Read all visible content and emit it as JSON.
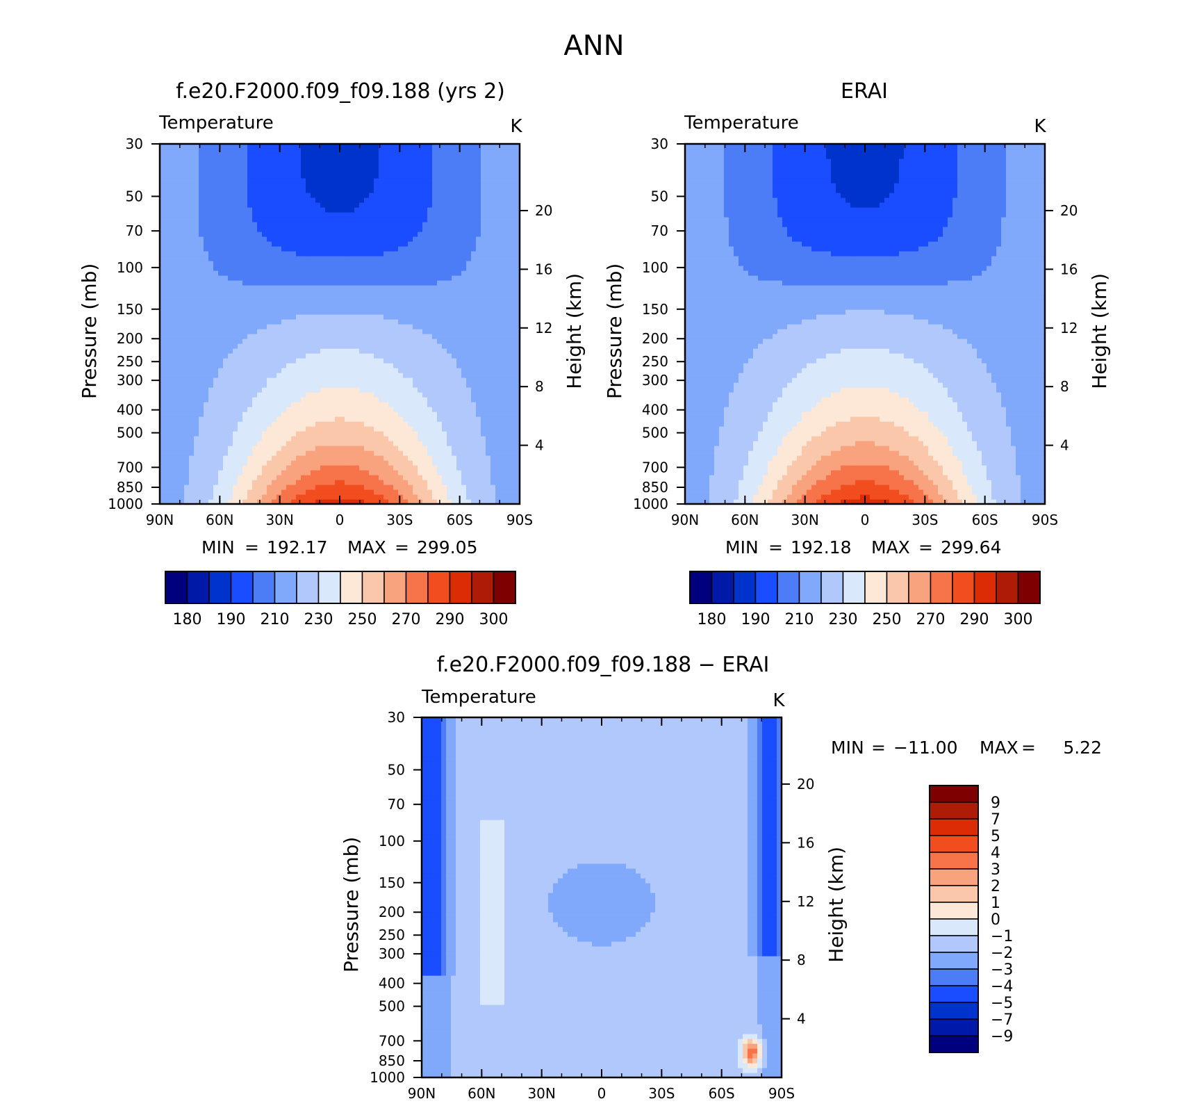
{
  "figure_title": "ANN",
  "colors": {
    "abs_scale": [
      "#00007f",
      "#0019a8",
      "#0033cc",
      "#1a4dff",
      "#4d7cf7",
      "#80a8fb",
      "#b0c8fb",
      "#d9e8fb",
      "#fde8d8",
      "#fbc7aa",
      "#f8a27e",
      "#f7744a",
      "#f24d1e",
      "#db2c05",
      "#ae1b06",
      "#7f0000"
    ],
    "diff_scale": [
      "#00007f",
      "#0019a8",
      "#0033cc",
      "#1a4dff",
      "#4d7cf7",
      "#80a8fb",
      "#b0c8fb",
      "#d9e8fb",
      "#fde8d8",
      "#fbc7aa",
      "#f8a27e",
      "#f7744a",
      "#f24d1e",
      "#db2c05",
      "#ae1b06",
      "#7f0000"
    ]
  },
  "chart_data": [
    {
      "type": "heatmap",
      "title": "f.e20.F2000.f09_f09.188 (yrs 2)",
      "left_label": "Temperature",
      "units": "K",
      "ylabel": "Pressure (mb)",
      "ylabel_right": "Height (km)",
      "x_ticks": [
        "90N",
        "60N",
        "30N",
        "0",
        "30S",
        "60S",
        "90S"
      ],
      "y_ticks": [
        "30",
        "50",
        "70",
        "100",
        "150",
        "200",
        "250",
        "300",
        "400",
        "500",
        "700",
        "850",
        "1000"
      ],
      "y_right_ticks": [
        "4",
        "8",
        "12",
        "16",
        "20"
      ],
      "ylim": [
        1000,
        30
      ],
      "stats": {
        "min_label": "MIN",
        "min": "192.17",
        "max_label": "MAX",
        "max": "299.05"
      },
      "colorbar_labels": [
        "180",
        "190",
        "210",
        "230",
        "250",
        "270",
        "290",
        "300"
      ],
      "colorbar_levels": [
        175,
        180,
        185,
        190,
        200,
        210,
        220,
        230,
        240,
        250,
        260,
        270,
        280,
        290,
        295,
        300
      ],
      "min_value": 192.17,
      "max_value": 299.05
    },
    {
      "type": "heatmap",
      "title": "ERAI",
      "left_label": "Temperature",
      "units": "K",
      "ylabel": "Pressure (mb)",
      "ylabel_right": "Height (km)",
      "x_ticks": [
        "90N",
        "60N",
        "30N",
        "0",
        "30S",
        "60S",
        "90S"
      ],
      "y_ticks": [
        "30",
        "50",
        "70",
        "100",
        "150",
        "200",
        "250",
        "300",
        "400",
        "500",
        "700",
        "850",
        "1000"
      ],
      "y_right_ticks": [
        "4",
        "8",
        "12",
        "16",
        "20"
      ],
      "ylim": [
        1000,
        30
      ],
      "stats": {
        "min_label": "MIN",
        "min": "192.18",
        "max_label": "MAX",
        "max": "299.64"
      },
      "colorbar_labels": [
        "180",
        "190",
        "210",
        "230",
        "250",
        "270",
        "290",
        "300"
      ],
      "min_value": 192.18,
      "max_value": 299.64
    },
    {
      "type": "heatmap",
      "title": "f.e20.F2000.f09_f09.188 − ERAI",
      "left_label": "Temperature",
      "units": "K",
      "ylabel": "Pressure (mb)",
      "ylabel_right": "Height (km)",
      "x_ticks": [
        "90N",
        "60N",
        "30N",
        "0",
        "30S",
        "60S",
        "90S"
      ],
      "y_ticks": [
        "30",
        "50",
        "70",
        "100",
        "150",
        "200",
        "250",
        "300",
        "400",
        "500",
        "700",
        "850",
        "1000"
      ],
      "y_right_ticks": [
        "4",
        "8",
        "12",
        "16",
        "20"
      ],
      "ylim": [
        1000,
        30
      ],
      "stats": {
        "min_label": "MIN",
        "min": "−11.00",
        "max_label": "MAX",
        "max": "5.22"
      },
      "colorbar_labels": [
        "9",
        "7",
        "5",
        "4",
        "3",
        "2",
        "1",
        "0",
        "−1",
        "−2",
        "−3",
        "−4",
        "−5",
        "−7",
        "−9"
      ],
      "min_value": -11.0,
      "max_value": 5.22
    }
  ]
}
